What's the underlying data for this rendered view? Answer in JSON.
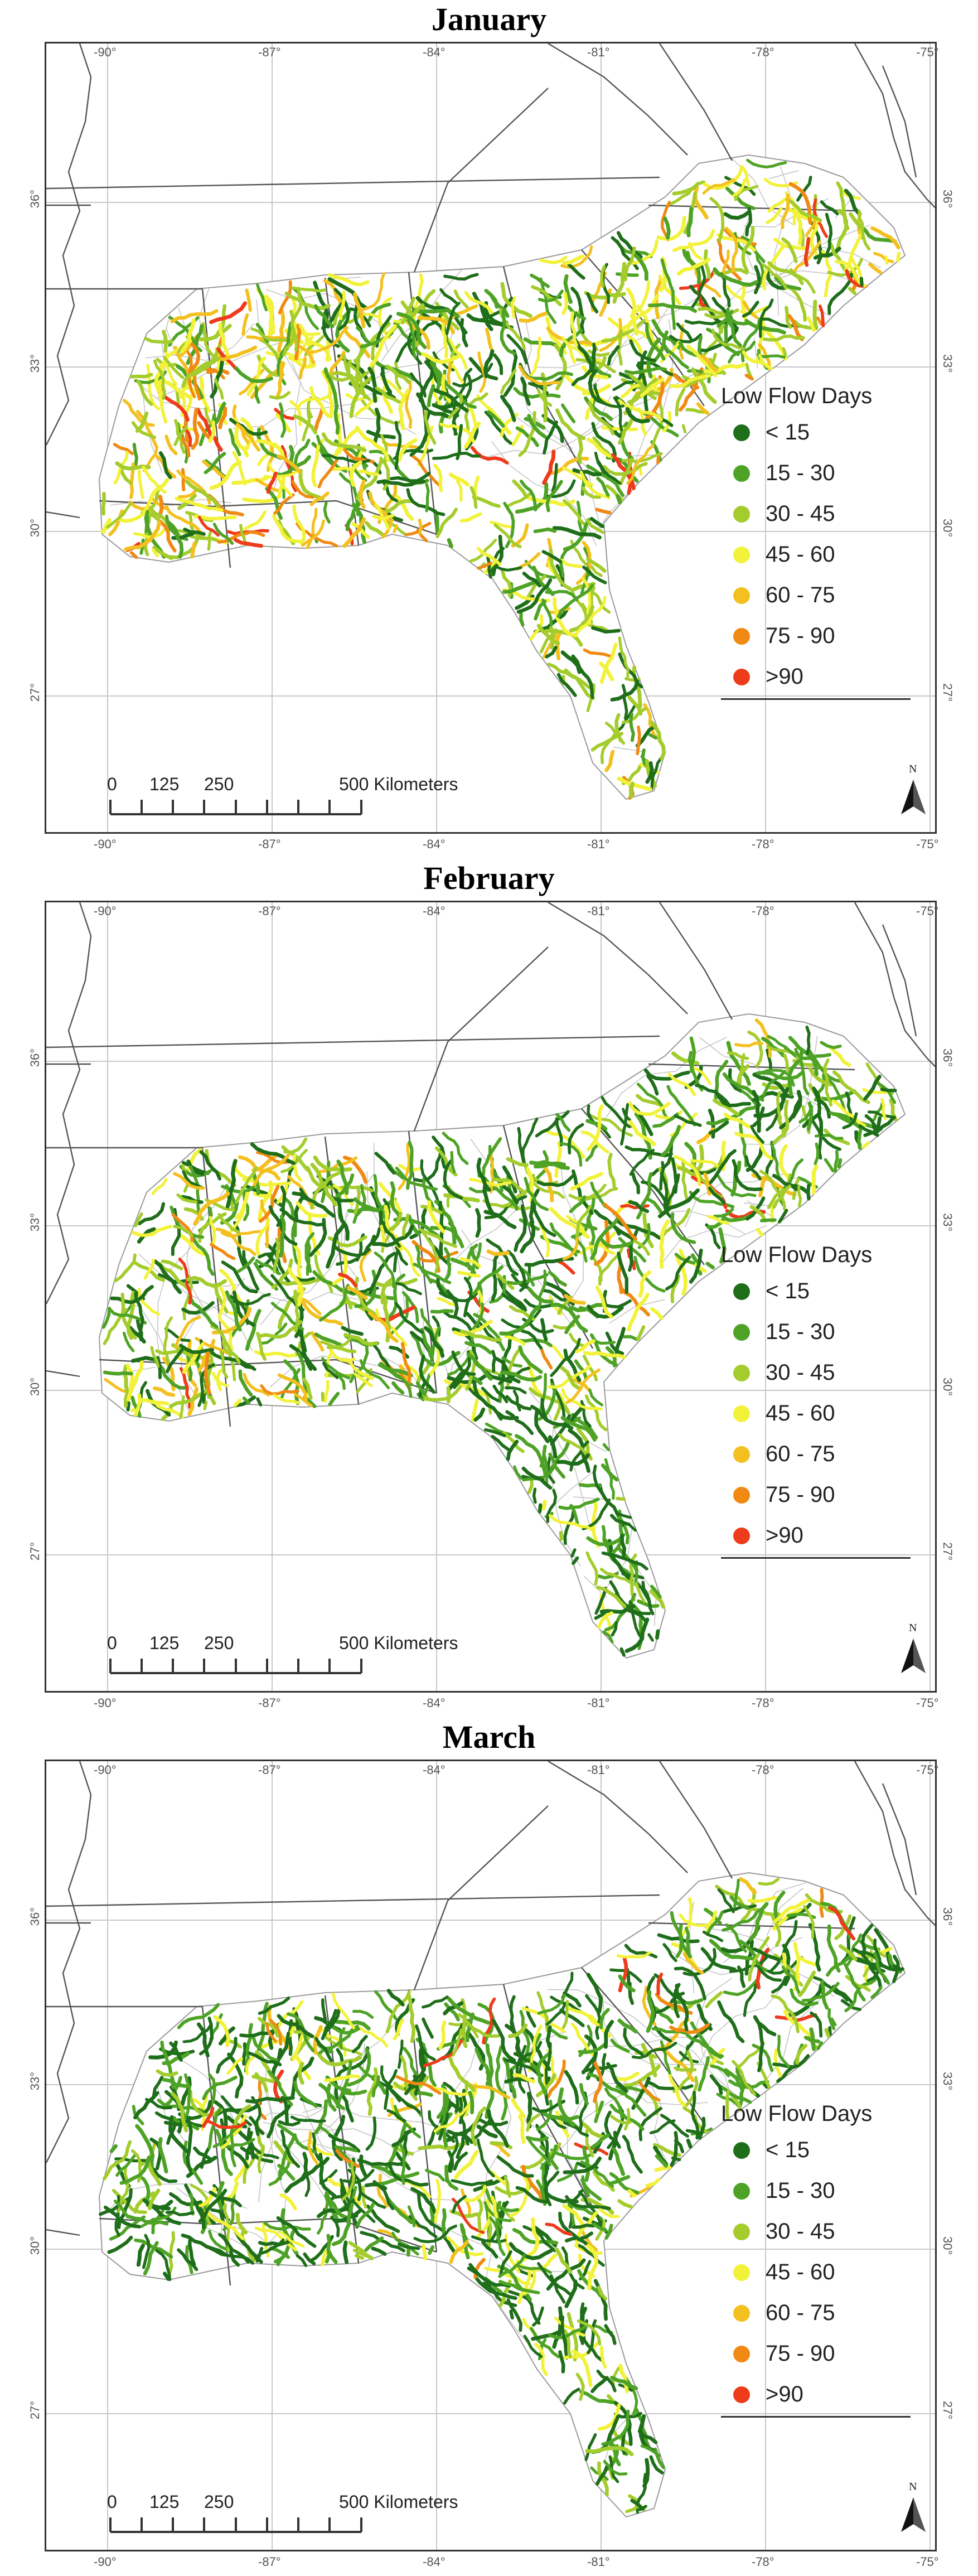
{
  "panels": [
    {
      "title": "January",
      "variant": "jan"
    },
    {
      "title": "February",
      "variant": "feb"
    },
    {
      "title": "March",
      "variant": "mar"
    }
  ],
  "axes": {
    "top_labels": [
      "-90°",
      "-87°",
      "-84°",
      "-81°",
      "-78°",
      "-75°"
    ],
    "bottom_labels": [
      "-90°",
      "-87°",
      "-84°",
      "-81°",
      "-78°",
      "-75°"
    ],
    "left_labels": [
      "36°",
      "33°",
      "30°",
      "27°"
    ],
    "right_labels": [
      "36°",
      "33°",
      "30°",
      "27°"
    ]
  },
  "legend": {
    "title": "Low Flow Days",
    "items": [
      {
        "label": "< 15",
        "color": "#1f6e1a"
      },
      {
        "label": "15 - 30",
        "color": "#4ea326"
      },
      {
        "label": "30 - 45",
        "color": "#a3cc2c"
      },
      {
        "label": "45 - 60",
        "color": "#f2f23a"
      },
      {
        "label": "60 - 75",
        "color": "#f4c020"
      },
      {
        "label": "75 - 90",
        "color": "#f08a14"
      },
      {
        "label": ">90",
        "color": "#ee3b1c"
      }
    ]
  },
  "scalebar": {
    "labels": [
      "0",
      "125",
      "250",
      "500 Kilometers"
    ]
  },
  "north_arrow": {
    "letter": "N"
  }
}
